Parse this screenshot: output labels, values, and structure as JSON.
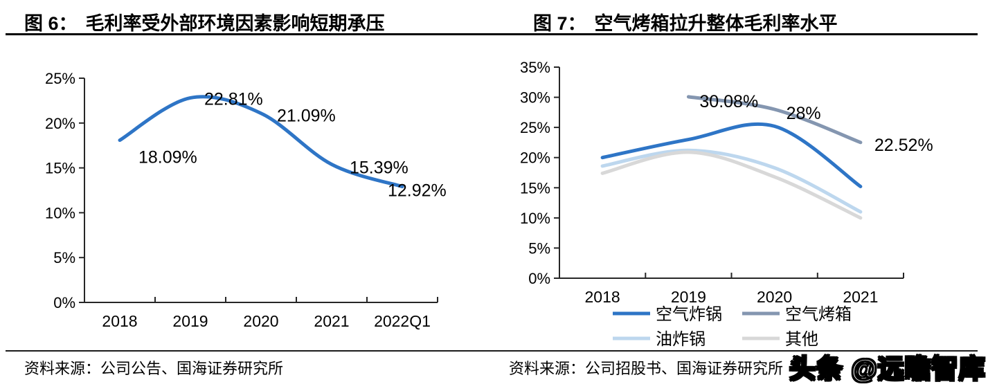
{
  "figures": [
    {
      "title_prefix": "图 6：",
      "title": "毛利率受外部环境因素影响短期承压",
      "source": "资料来源：公司公告、国海证券研究所"
    },
    {
      "title_prefix": "图 7：",
      "title": "空气烤箱拉升整体毛利率水平",
      "source": "资料来源：公司招股书、国海证券研究所"
    }
  ],
  "watermark": "头条 @远瞻智库",
  "colors": {
    "line_blue": "#2E75C6",
    "line_slate": "#8496B0",
    "line_lightblue": "#BDD7EE",
    "line_gray": "#D8D8D8",
    "axis": "#262626"
  },
  "chart_data": [
    {
      "type": "line",
      "title": "毛利率受外部环境因素影响短期承压",
      "categories": [
        "2018",
        "2019",
        "2020",
        "2021",
        "2022Q1"
      ],
      "series": [
        {
          "name": "毛利率",
          "slug": "gross-margin",
          "color": "#2E75C6",
          "values": [
            18.09,
            22.81,
            21.09,
            15.39,
            12.92
          ],
          "point_labels": [
            "18.09%",
            "22.81%",
            "21.09%",
            "15.39%",
            "12.92%"
          ],
          "label_offsets": [
            [
              27,
              33
            ],
            [
              20,
              10
            ],
            [
              23,
              12
            ],
            [
              26,
              13
            ],
            [
              -21,
              14
            ]
          ]
        }
      ],
      "xlabel": "",
      "ylabel": "",
      "ylim": [
        0,
        25
      ],
      "ytick_step": 5,
      "ytick_labels": [
        "0%",
        "5%",
        "10%",
        "15%",
        "20%",
        "25%"
      ],
      "grid": false,
      "smooth": true,
      "legend": false
    },
    {
      "type": "line",
      "title": "空气烤箱拉升整体毛利率水平",
      "categories": [
        "2018",
        "2019",
        "2020",
        "2021"
      ],
      "series": [
        {
          "name": "空气炸锅",
          "slug": "air-fryer",
          "color": "#2E75C6",
          "values": [
            20.0,
            23.0,
            25.2,
            15.2
          ]
        },
        {
          "name": "空气烤箱",
          "slug": "air-oven",
          "color": "#8496B0",
          "values": [
            null,
            30.08,
            28.0,
            22.52
          ],
          "point_labels": [
            null,
            "30.08%",
            "28%",
            "22.52%"
          ],
          "label_offsets": [
            null,
            [
              16,
              15
            ],
            [
              17,
              14
            ],
            [
              20,
              12
            ]
          ]
        },
        {
          "name": "油炸锅",
          "slug": "deep-fryer",
          "color": "#BDD7EE",
          "values": [
            18.6,
            21.2,
            18.3,
            11.0
          ]
        },
        {
          "name": "其他",
          "slug": "other",
          "color": "#D8D8D8",
          "values": [
            17.4,
            20.9,
            16.8,
            10.0
          ]
        }
      ],
      "xlabel": "",
      "ylabel": "",
      "ylim": [
        0,
        35
      ],
      "ytick_step": 5,
      "ytick_labels": [
        "0%",
        "5%",
        "10%",
        "15%",
        "20%",
        "25%",
        "30%",
        "35%"
      ],
      "grid": false,
      "smooth": true,
      "legend": true,
      "legend_position": "bottom"
    }
  ]
}
